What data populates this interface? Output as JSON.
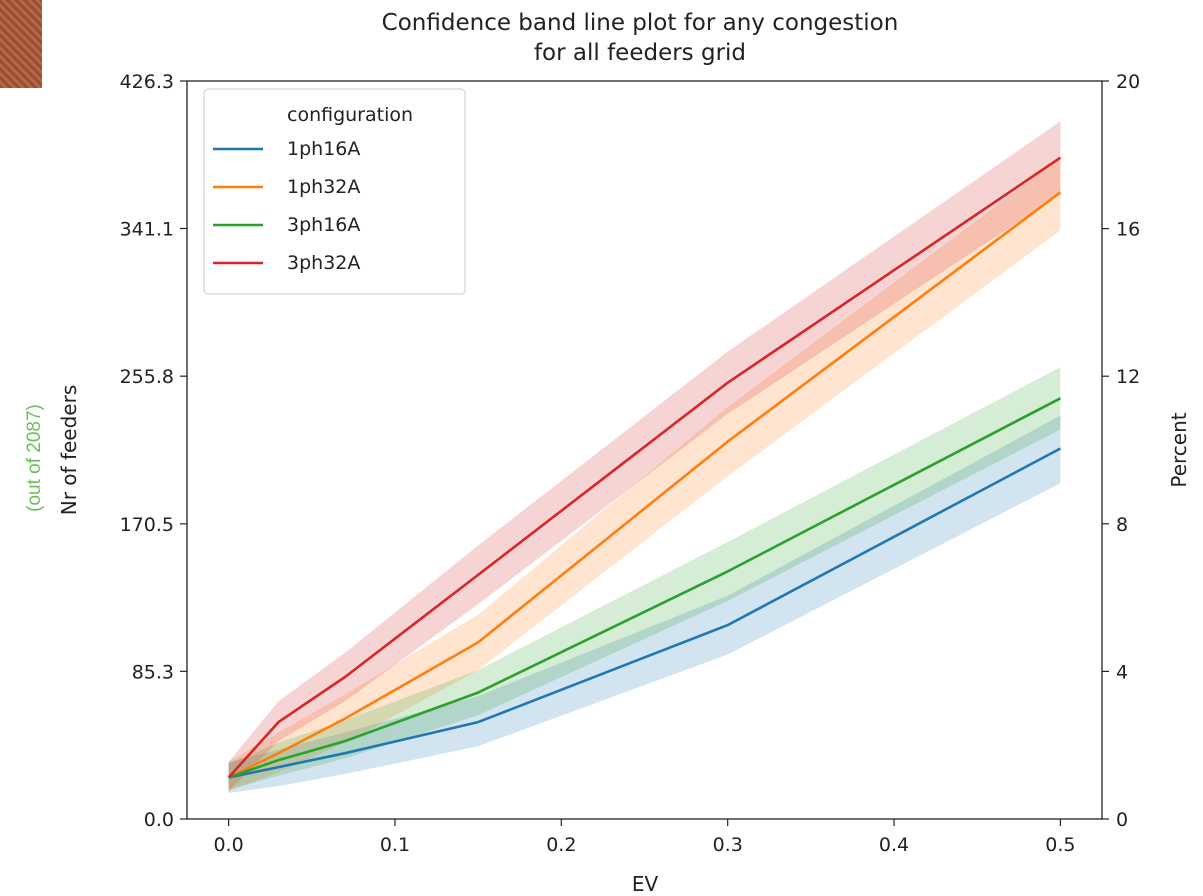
{
  "side_note": "(out of 2087)",
  "chart_data": {
    "type": "line",
    "title": "Confidence band line plot for any congestion",
    "subtitle": "for all feeders grid",
    "xlabel": "EV",
    "ylabel": "Nr of feeders",
    "ylabel_right": "Percent",
    "xlim": [
      -0.025,
      0.525
    ],
    "ylim": [
      0,
      426.3
    ],
    "ylim_right": [
      0,
      20
    ],
    "xticks": [
      "0.0",
      "0.1",
      "0.2",
      "0.3",
      "0.4",
      "0.5"
    ],
    "yticks_left": [
      "0.0",
      "85.3",
      "170.5",
      "255.8",
      "341.1",
      "426.3"
    ],
    "yticks_right": [
      "0",
      "4",
      "8",
      "12",
      "16",
      "20"
    ],
    "grid": false,
    "legend": {
      "title": "configuration",
      "placement": "top-left"
    },
    "x": [
      0.0,
      0.03,
      0.07,
      0.15,
      0.3,
      0.5
    ],
    "series": [
      {
        "name": "1ph16A",
        "color": "#1f77b4",
        "values": [
          24,
          30,
          38,
          56,
          112,
          214
        ],
        "lower": [
          15,
          19,
          26,
          42,
          95,
          194
        ],
        "upper": [
          33,
          40,
          50,
          71,
          129,
          233
        ]
      },
      {
        "name": "1ph32A",
        "color": "#ff7f0e",
        "values": [
          24,
          38,
          58,
          102,
          218,
          362
        ],
        "lower": [
          16,
          27,
          44,
          86,
          198,
          340
        ],
        "upper": [
          33,
          50,
          72,
          118,
          238,
          382
        ]
      },
      {
        "name": "3ph16A",
        "color": "#2ca02c",
        "values": [
          24,
          34,
          45,
          73,
          143,
          243
        ],
        "lower": [
          17,
          25,
          35,
          60,
          126,
          225
        ],
        "upper": [
          32,
          44,
          57,
          86,
          160,
          261
        ]
      },
      {
        "name": "3ph32A",
        "color": "#d62728",
        "values": [
          24,
          56,
          82,
          141,
          252,
          382
        ],
        "lower": [
          16,
          45,
          68,
          124,
          234,
          361
        ],
        "upper": [
          33,
          68,
          96,
          158,
          270,
          403
        ]
      }
    ]
  }
}
